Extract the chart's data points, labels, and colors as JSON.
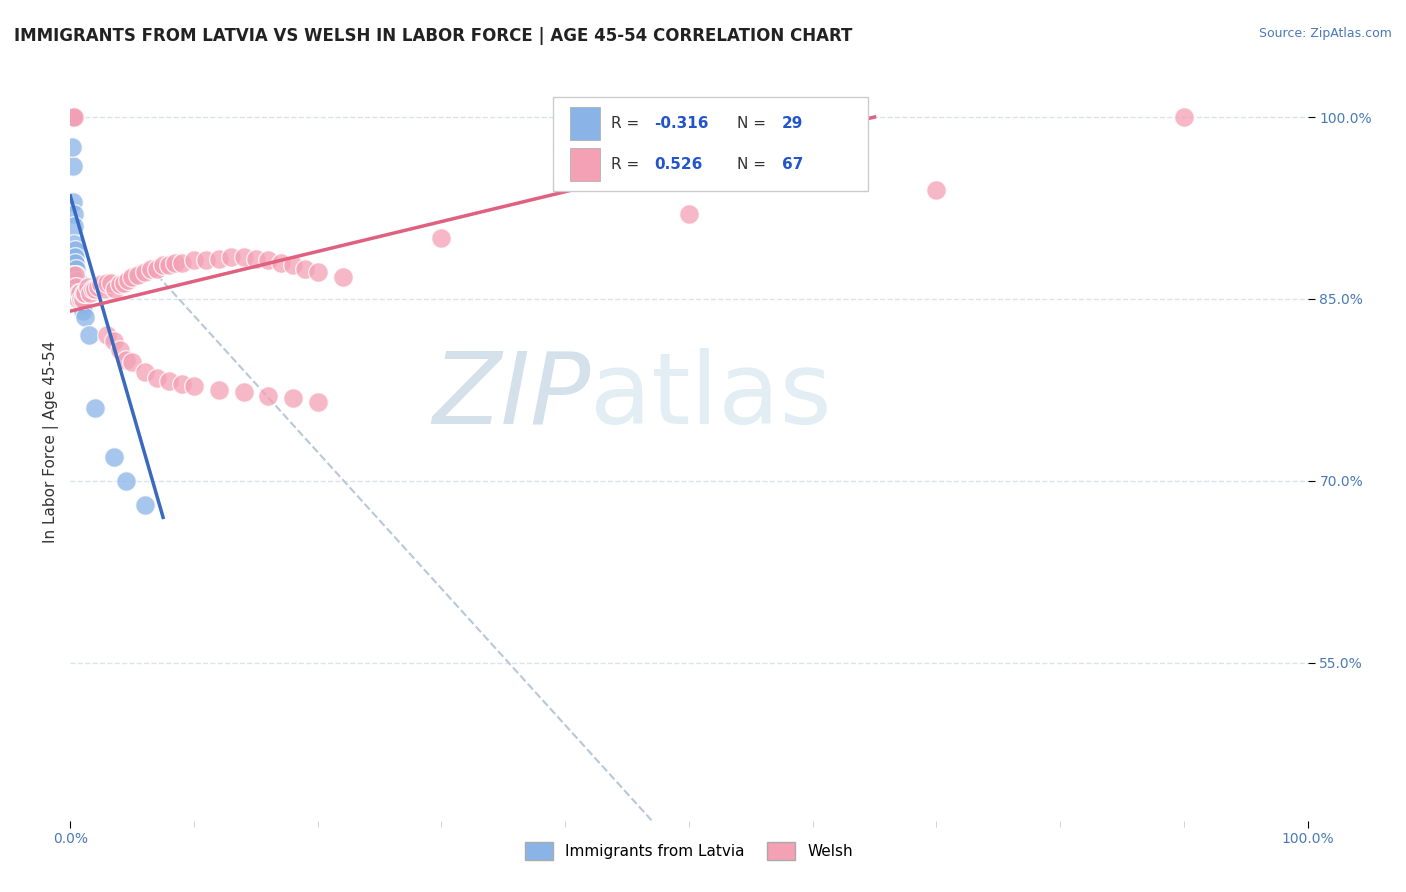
{
  "title": "IMMIGRANTS FROM LATVIA VS WELSH IN LABOR FORCE | AGE 45-54 CORRELATION CHART",
  "source_text": "Source: ZipAtlas.com",
  "ylabel": "In Labor Force | Age 45-54",
  "xlim": [
    0.0,
    1.0
  ],
  "ylim": [
    0.42,
    1.045
  ],
  "yticks": [
    0.55,
    0.7,
    0.85,
    1.0
  ],
  "ytick_labels": [
    "55.0%",
    "70.0%",
    "85.0%",
    "100.0%"
  ],
  "xtick_labels": [
    "0.0%",
    "100.0%"
  ],
  "xticks": [
    0.0,
    1.0
  ],
  "legend_R_latvia": "-0.316",
  "legend_N_latvia": "29",
  "legend_R_welsh": "0.526",
  "legend_N_welsh": "67",
  "color_latvia": "#8ab4e8",
  "color_welsh": "#f4a0b5",
  "color_trendline_latvia": "#3a6abf",
  "color_trendline_welsh": "#e06080",
  "background_color": "#ffffff",
  "grid_color": "#d8e4f0",
  "watermark_zip_color": "#b8ccdc",
  "watermark_atlas_color": "#c8dcea",
  "title_fontsize": 12,
  "axis_label_fontsize": 11,
  "tick_fontsize": 10,
  "source_fontsize": 9,
  "latvia_x": [
    0.001,
    0.001,
    0.002,
    0.002,
    0.003,
    0.003,
    0.003,
    0.004,
    0.004,
    0.004,
    0.005,
    0.005,
    0.005,
    0.006,
    0.006,
    0.007,
    0.007,
    0.008,
    0.008,
    0.009,
    0.01,
    0.01,
    0.012,
    0.015,
    0.02,
    0.035,
    0.045,
    0.06,
    0.001
  ],
  "latvia_y": [
    1.0,
    1.0,
    0.96,
    0.93,
    0.92,
    0.91,
    0.895,
    0.89,
    0.885,
    0.88,
    0.875,
    0.87,
    0.865,
    0.865,
    0.86,
    0.86,
    0.855,
    0.855,
    0.85,
    0.848,
    0.845,
    0.84,
    0.835,
    0.82,
    0.76,
    0.72,
    0.7,
    0.68,
    0.975
  ],
  "welsh_x": [
    0.002,
    0.003,
    0.004,
    0.005,
    0.006,
    0.007,
    0.008,
    0.009,
    0.01,
    0.011,
    0.012,
    0.014,
    0.016,
    0.018,
    0.02,
    0.022,
    0.025,
    0.028,
    0.03,
    0.033,
    0.036,
    0.04,
    0.043,
    0.047,
    0.05,
    0.055,
    0.06,
    0.065,
    0.07,
    0.075,
    0.08,
    0.085,
    0.09,
    0.1,
    0.11,
    0.12,
    0.13,
    0.14,
    0.15,
    0.16,
    0.17,
    0.18,
    0.19,
    0.2,
    0.22,
    0.03,
    0.035,
    0.04,
    0.045,
    0.05,
    0.06,
    0.07,
    0.08,
    0.09,
    0.1,
    0.12,
    0.14,
    0.16,
    0.18,
    0.2,
    0.001,
    0.002,
    0.003,
    0.3,
    0.5,
    0.7,
    0.9
  ],
  "welsh_y": [
    0.87,
    0.86,
    0.87,
    0.86,
    0.85,
    0.855,
    0.855,
    0.85,
    0.85,
    0.855,
    0.855,
    0.86,
    0.855,
    0.858,
    0.858,
    0.86,
    0.862,
    0.858,
    0.863,
    0.863,
    0.858,
    0.862,
    0.863,
    0.866,
    0.868,
    0.87,
    0.872,
    0.875,
    0.875,
    0.878,
    0.878,
    0.88,
    0.88,
    0.882,
    0.882,
    0.883,
    0.885,
    0.885,
    0.883,
    0.882,
    0.88,
    0.878,
    0.875,
    0.872,
    0.868,
    0.82,
    0.815,
    0.808,
    0.8,
    0.798,
    0.79,
    0.785,
    0.782,
    0.78,
    0.778,
    0.775,
    0.773,
    0.77,
    0.768,
    0.765,
    1.0,
    1.0,
    1.0,
    0.9,
    0.92,
    0.94,
    1.0
  ]
}
